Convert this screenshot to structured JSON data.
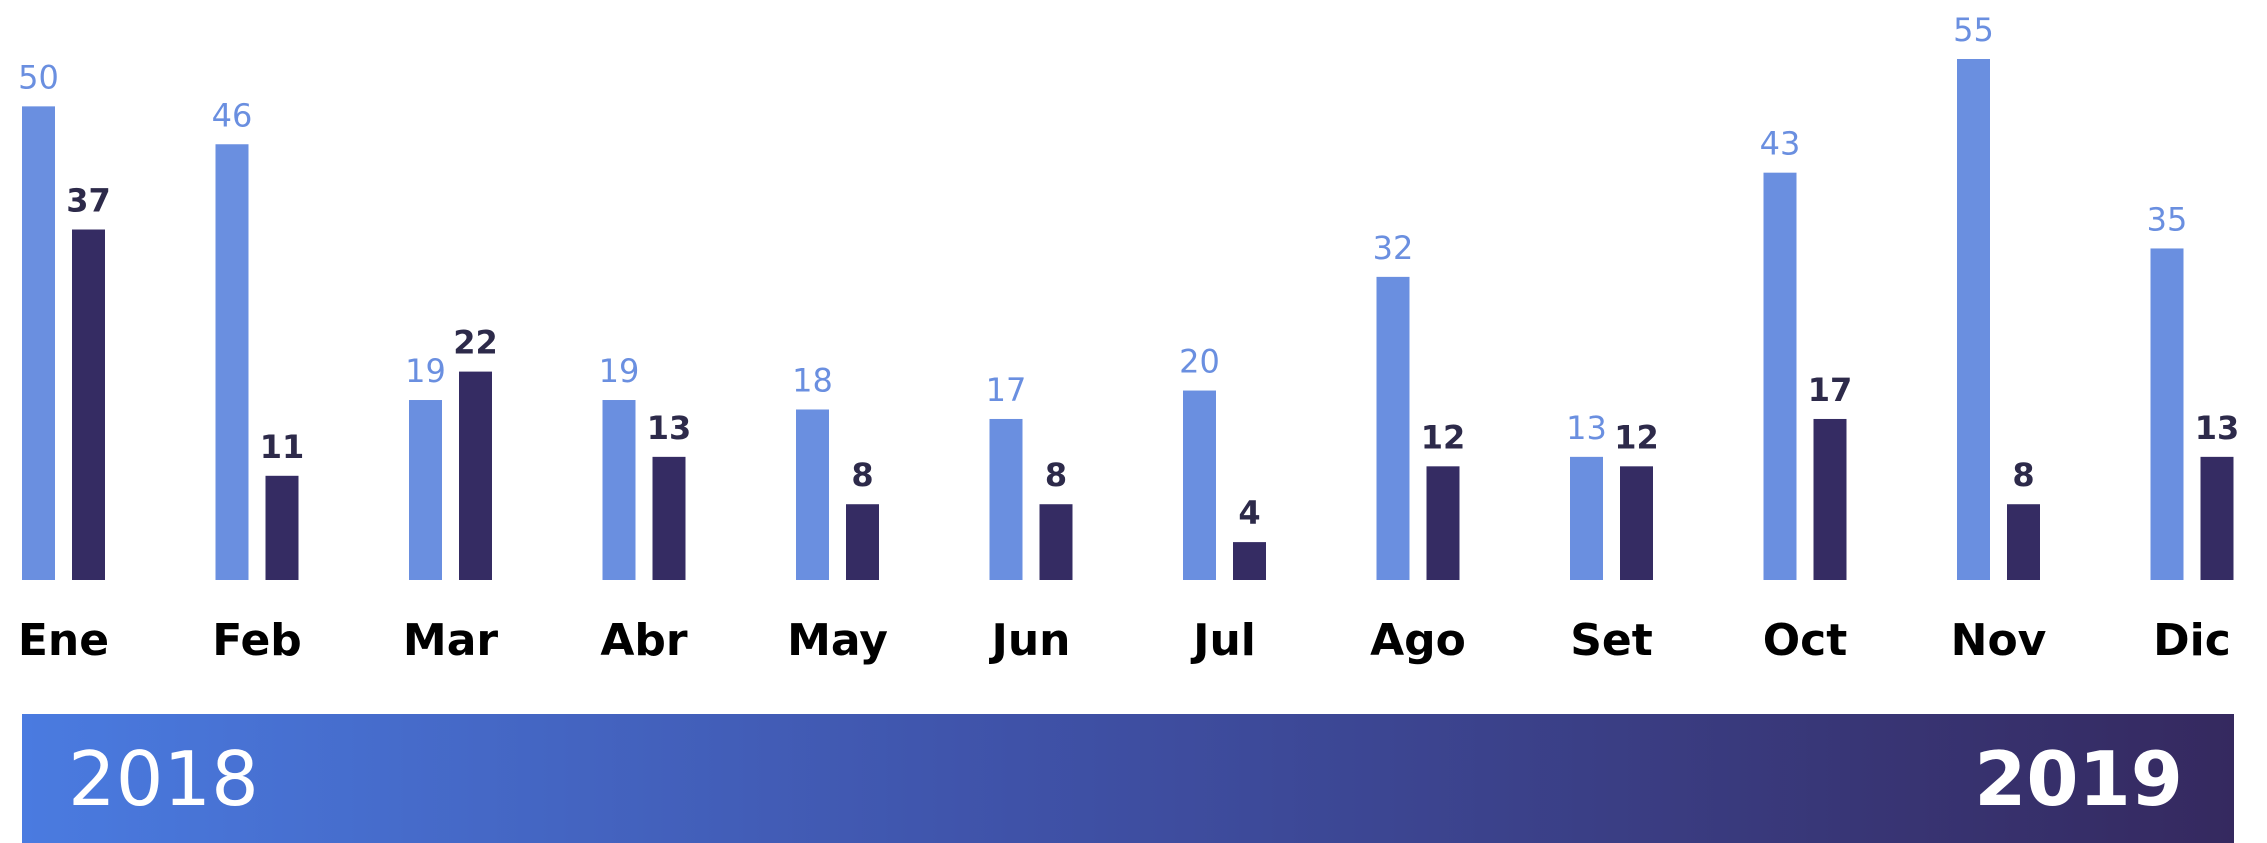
{
  "chart_data": {
    "type": "bar",
    "categories": [
      "Ene",
      "Feb",
      "Mar",
      "Abr",
      "May",
      "Jun",
      "Jul",
      "Ago",
      "Set",
      "Oct",
      "Nov",
      "Dic"
    ],
    "series": [
      {
        "name": "2018",
        "color": "#6a8fe0",
        "values": [
          50,
          46,
          19,
          19,
          18,
          17,
          20,
          32,
          13,
          43,
          55,
          35
        ]
      },
      {
        "name": "2019",
        "color": "#352c63",
        "values": [
          37,
          11,
          22,
          13,
          8,
          8,
          4,
          12,
          12,
          17,
          8,
          13
        ]
      }
    ]
  }
}
